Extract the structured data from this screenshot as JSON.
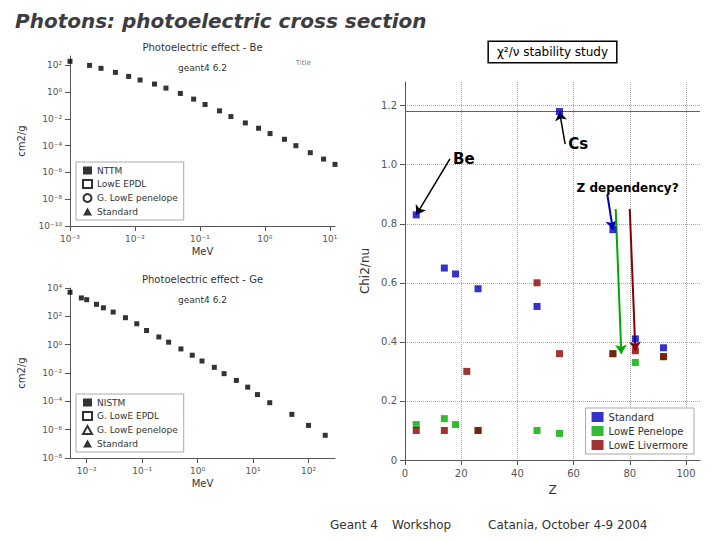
{
  "title": "Photons: photoelectric cross section",
  "annotations": [
    "Geant 4",
    "Workshop",
    "Catania, October 4-9 2004"
  ],
  "chart_data": [
    {
      "type": "scatter",
      "title": "Photoelectric effect - Be",
      "xlabel": "MeV",
      "ylabel": "cm2/g",
      "log": true,
      "grid": false,
      "legend": "lower left",
      "xlim": [
        0.001,
        12
      ],
      "ylim": [
        1e-10,
        500
      ],
      "xticks": [
        {
          "value": 0.001,
          "label": "10⁻³"
        },
        {
          "value": 0.01,
          "label": "10⁻²"
        },
        {
          "value": 0.1,
          "label": "10⁻¹"
        },
        {
          "value": 1,
          "label": "10⁰"
        },
        {
          "value": 10,
          "label": "10¹"
        }
      ],
      "yticks": [
        {
          "value": 1e-10,
          "label": "10⁻¹⁰"
        },
        {
          "value": 1e-08,
          "label": "10⁻⁸"
        },
        {
          "value": 1e-06,
          "label": "10⁻⁶"
        },
        {
          "value": 0.0001,
          "label": "10⁻⁴"
        },
        {
          "value": 0.01,
          "label": "10⁻²"
        },
        {
          "value": 1,
          "label": "10⁰"
        },
        {
          "value": 100,
          "label": "10²"
        }
      ],
      "annotations": [
        {
          "text": "geant4 6.2"
        },
        {
          "text": "Title"
        }
      ],
      "series": [
        {
          "x": [
            0.001,
            0.002,
            0.003,
            0.005,
            0.008,
            0.012,
            0.02,
            0.03,
            0.05,
            0.08,
            0.12,
            0.2,
            0.3,
            0.5,
            0.8,
            1.2,
            2.0,
            3.0,
            5.0,
            8.0,
            12.0
          ],
          "values": [
            200,
            100,
            60,
            30,
            15,
            8,
            4,
            2,
            0.8,
            0.3,
            0.12,
            0.04,
            0.015,
            0.005,
            0.002,
            0.0008,
            0.0003,
            0.0001,
            3e-05,
            1e-05,
            4e-06
          ],
          "color": "#000000",
          "marker": "square"
        },
        {
          "name": "NTTM",
          "x": [],
          "values": [],
          "color": "#000000",
          "marker": "square"
        },
        {
          "name": "LowE EPDL",
          "x": [],
          "values": [],
          "color": "#000000",
          "marker": "square-open"
        },
        {
          "name": "G. LowE penelope",
          "x": [],
          "values": [],
          "color": "#000000",
          "marker": "circle-open"
        },
        {
          "name": "Standard",
          "x": [],
          "values": [],
          "color": "#000000",
          "marker": "triangle"
        }
      ]
    },
    {
      "type": "scatter",
      "title": "Photoelectric effect - Ge",
      "xlabel": "MeV",
      "ylabel": "cm2/g",
      "log": true,
      "grid": false,
      "legend": "lower left",
      "xlim": [
        0.005,
        300
      ],
      "ylim": [
        1e-08,
        10000
      ],
      "xticks": [
        {
          "value": 0.01,
          "label": "10⁻²"
        },
        {
          "value": 0.1,
          "label": "10⁻¹"
        },
        {
          "value": 1,
          "label": "10⁰"
        },
        {
          "value": 10,
          "label": "10¹"
        },
        {
          "value": 100,
          "label": "10²"
        }
      ],
      "yticks": [
        {
          "value": 1e-08,
          "label": "10⁻⁸"
        },
        {
          "value": 1e-06,
          "label": "10⁻⁶"
        },
        {
          "value": 0.0001,
          "label": "10⁻⁴"
        },
        {
          "value": 0.01,
          "label": "10⁻²"
        },
        {
          "value": 1,
          "label": "10⁰"
        },
        {
          "value": 100,
          "label": "10²"
        },
        {
          "value": 10000,
          "label": "10⁴"
        }
      ],
      "annotations": [
        {
          "text": "geant4 6.2"
        }
      ],
      "series": [
        {
          "x": [
            0.005,
            0.008,
            0.01,
            0.015,
            0.02,
            0.03,
            0.05,
            0.08,
            0.12,
            0.2,
            0.3,
            0.5,
            0.8,
            1.2,
            2.0,
            3.0,
            5.0,
            8.0,
            12.0,
            20,
            50,
            100,
            200
          ],
          "values": [
            5000,
            2000,
            1500,
            700,
            400,
            200,
            80,
            30,
            10,
            3.5,
            1.5,
            0.5,
            0.18,
            0.07,
            0.025,
            0.009,
            0.003,
            0.001,
            0.0003,
            8e-05,
            1.2e-05,
            2e-06,
            4e-07
          ],
          "color": "#000000",
          "marker": "square"
        },
        {
          "name": "NISTM",
          "x": [],
          "values": [],
          "color": "#000000",
          "marker": "square"
        },
        {
          "name": "G. LowE EPDL",
          "x": [],
          "values": [],
          "color": "#000000",
          "marker": "square-open"
        },
        {
          "name": "G. LowE penelope",
          "x": [],
          "values": [],
          "color": "#000000",
          "marker": "triangle-open"
        },
        {
          "name": "Standard",
          "x": [],
          "values": [],
          "color": "#000000",
          "marker": "triangle"
        }
      ]
    },
    {
      "type": "scatter",
      "xlabel": "Z",
      "ylabel": "Chi2/nu",
      "grid": true,
      "legend": "lower right",
      "xlim": [
        0,
        105
      ],
      "ylim": [
        0,
        1.28
      ],
      "xticks": [
        0,
        20,
        40,
        60,
        80,
        100
      ],
      "yticks": [
        0,
        0.2,
        0.4,
        0.6,
        0.8,
        {
          "value": 1.0,
          "label": "1.0"
        },
        1.2
      ],
      "hlines": [
        1.18
      ],
      "annotations": [
        {
          "text": "χ²/ν stability study"
        },
        {
          "text": "Be",
          "xy": [
            4,
            0.83
          ],
          "xytext": [
            16,
            1.02
          ],
          "color": "#000000"
        },
        {
          "text": "Cs",
          "xy": [
            55,
            1.18
          ],
          "xytext": [
            57,
            1.07
          ],
          "color": "#000000"
        },
        {
          "text": "Z dependency?",
          "xy": [
            60,
            0.92
          ]
        },
        {
          "xy": [
            74,
            0.78
          ],
          "xytext": [
            72,
            0.9
          ],
          "color": "#0000bb"
        },
        {
          "xy": [
            77,
            0.36
          ],
          "xytext": [
            75,
            0.85
          ],
          "color": "#00aa00"
        },
        {
          "xy": [
            82,
            0.37
          ],
          "xytext": [
            80,
            0.85
          ],
          "color": "#880000"
        }
      ],
      "series": [
        {
          "name": "Standard",
          "x": [
            4,
            14,
            18,
            26,
            47,
            55,
            74,
            82,
            92
          ],
          "values": [
            0.83,
            0.65,
            0.63,
            0.58,
            0.52,
            1.18,
            0.78,
            0.41,
            0.38
          ],
          "color": "#0000bb",
          "marker": "square"
        },
        {
          "name": "LowE Penelope",
          "x": [
            4,
            14,
            18,
            26,
            47,
            55,
            74,
            82,
            92
          ],
          "values": [
            0.12,
            0.14,
            0.12,
            0.1,
            0.1,
            0.09,
            0.36,
            0.33,
            0.35
          ],
          "color": "#00aa00",
          "marker": "square"
        },
        {
          "name": "LowE Livermore",
          "x": [
            4,
            14,
            22,
            26,
            47,
            55,
            74,
            82,
            92
          ],
          "values": [
            0.1,
            0.1,
            0.3,
            0.1,
            0.6,
            0.36,
            0.36,
            0.37,
            0.35
          ],
          "color": "#880000",
          "marker": "square"
        }
      ]
    }
  ]
}
